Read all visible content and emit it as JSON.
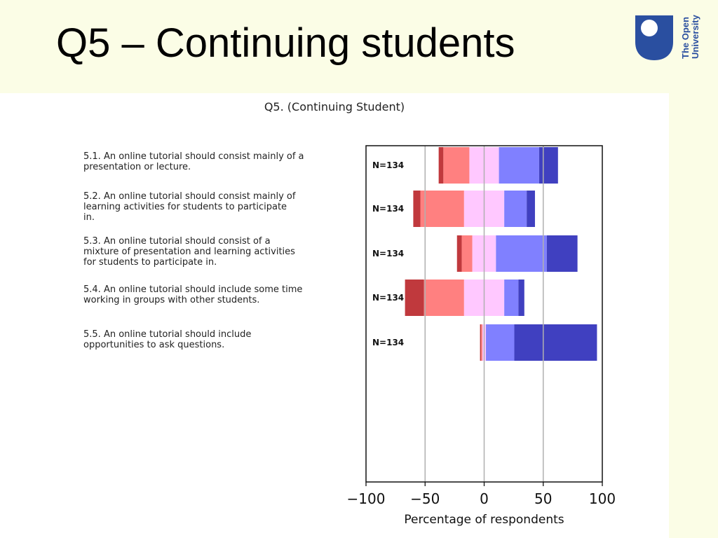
{
  "slide": {
    "title": "Q5 – Continuing students"
  },
  "logo": {
    "name": "the-open-university-logo",
    "text": "The Open University",
    "color": "#2a4fa0"
  },
  "chart_data": {
    "type": "bar",
    "subtype": "diverging-stacked",
    "title": "Q5. (Continuing Student)",
    "xlabel": "Percentage of respondents",
    "ylabel": "",
    "xlim": [
      -100,
      100
    ],
    "xticks": [
      -100,
      -50,
      0,
      50,
      100
    ],
    "xtick_labels": [
      "−100",
      "−50",
      "0",
      "50",
      "100"
    ],
    "grid_lines": [
      -50,
      0,
      50
    ],
    "legend": "none",
    "series_colors": [
      "#c0393d",
      "#ff8080",
      "#ffc8ff",
      "#8080ff",
      "#4040c0"
    ],
    "categories": [
      "5.1. An online tutorial should consist mainly of a presentation or lecture.",
      "5.2. An online tutorial should consist mainly of learning activities for students to participate in.",
      "5.3. An online tutorial should consist of a mixture of presentation and learning activities for students to participate in.",
      "5.4. An online tutorial should include some time working in groups with other students.",
      "5.5. An online tutorial should include opportunities to ask questions."
    ],
    "category_lines": [
      [
        "5.1. An online tutorial should consist mainly of a",
        "presentation or lecture."
      ],
      [
        "5.2. An online tutorial should consist mainly of",
        "learning activities for students to participate",
        "in."
      ],
      [
        "5.3. An online tutorial should consist of a",
        "mixture of presentation and learning activities",
        "for students to participate in."
      ],
      [
        "5.4. An online tutorial should include some time",
        "working in groups with other students."
      ],
      [
        "5.5. An online tutorial should include",
        "opportunities to ask questions."
      ]
    ],
    "n_labels": [
      "N=134",
      "N=134",
      "N=134",
      "N=134",
      "N=134"
    ],
    "series": [
      {
        "values": [
          4,
          6,
          4,
          16,
          1
        ]
      },
      {
        "values": [
          22,
          37,
          9,
          34,
          1
        ]
      },
      {
        "values": [
          25,
          34,
          20,
          34,
          3
        ]
      },
      {
        "values": [
          34,
          19,
          43,
          12,
          24
        ]
      },
      {
        "values": [
          16,
          7,
          26,
          5,
          70
        ]
      }
    ]
  }
}
